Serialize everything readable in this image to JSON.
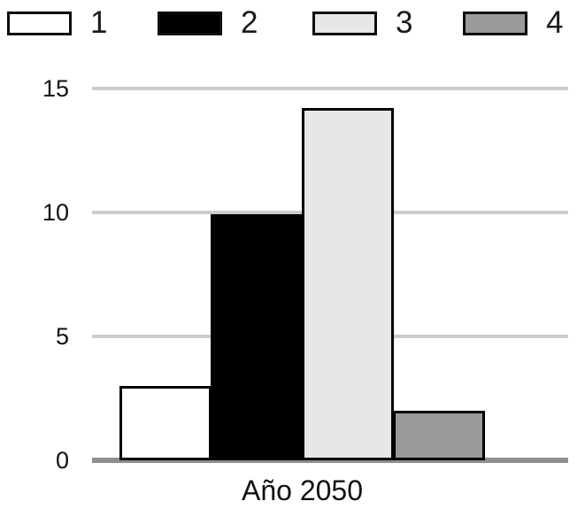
{
  "legend": {
    "items": [
      {
        "label": "1",
        "color": "#ffffff"
      },
      {
        "label": "2",
        "color": "#000000"
      },
      {
        "label": "3",
        "color": "#e7e7e7"
      },
      {
        "label": "4",
        "color": "#9a9a9a"
      }
    ]
  },
  "chart_data": {
    "type": "bar",
    "categories": [
      "1",
      "2",
      "3",
      "4"
    ],
    "values": [
      3,
      9.9,
      14.2,
      2
    ],
    "bar_colors": [
      "#ffffff",
      "#000000",
      "#e7e7e7",
      "#9a9a9a"
    ],
    "title": "",
    "xlabel": "Año 2050",
    "ylabel": "",
    "ylim": [
      0,
      15
    ],
    "yticks": [
      0,
      5,
      10,
      15
    ],
    "grid": true,
    "legend_position": "top",
    "bar_border_color": "#000000",
    "gridline_color": "#cccccc",
    "axis_line_color": "#8f8f8f"
  }
}
